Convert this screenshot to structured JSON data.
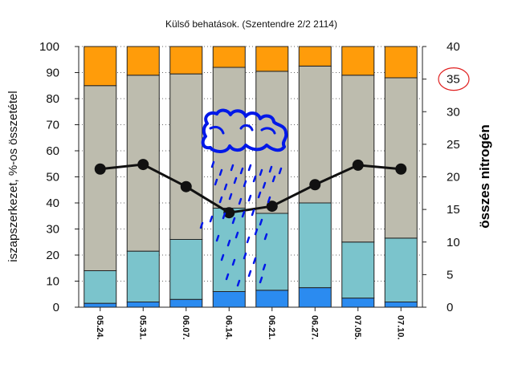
{
  "chart_data": {
    "type": "bar",
    "stacked": true,
    "title": "Külső behatások. (Szentendre 2/2 2114)",
    "ylabel": "iszapszerkezet, %-os összetétel",
    "y2label": "összes nitrogén",
    "ylim": [
      0,
      100
    ],
    "y2lim": [
      0,
      40
    ],
    "yticks": [
      "0",
      "10",
      "20",
      "30",
      "40",
      "50",
      "60",
      "70",
      "80",
      "90",
      "100"
    ],
    "y2ticks": [
      "0",
      "5",
      "10",
      "15",
      "20",
      "25",
      "30",
      "35",
      "40"
    ],
    "y2_highlight": "35",
    "categories": [
      "05.24.",
      "05.31.",
      "06.07.",
      "06.14.",
      "06.21.",
      "06.27.",
      "07.05.",
      "07.10."
    ],
    "series": [
      {
        "name": "blue",
        "color": "#2b8bf0",
        "values": [
          1.5,
          2,
          3,
          6,
          6.5,
          7.5,
          3.5,
          2
        ]
      },
      {
        "name": "teal",
        "color": "#7bc4cc",
        "values": [
          12.5,
          19.5,
          23,
          32,
          29.5,
          32.5,
          21.5,
          24.5
        ]
      },
      {
        "name": "grey",
        "color": "#bdbcae",
        "values": [
          71,
          67.5,
          63.5,
          54,
          54.5,
          52.5,
          64,
          61.5
        ]
      },
      {
        "name": "orange",
        "color": "#ff9c0a",
        "values": [
          15,
          11,
          10.5,
          8,
          9.5,
          7.5,
          11,
          12
        ]
      }
    ],
    "line": {
      "name": "összes nitrogén",
      "axis": "y2",
      "color": "#111111",
      "values": [
        21.2,
        21.9,
        18.5,
        14.5,
        15.5,
        18.8,
        21.8,
        21.2
      ]
    },
    "annotation": "rain-cloud-doodle"
  }
}
